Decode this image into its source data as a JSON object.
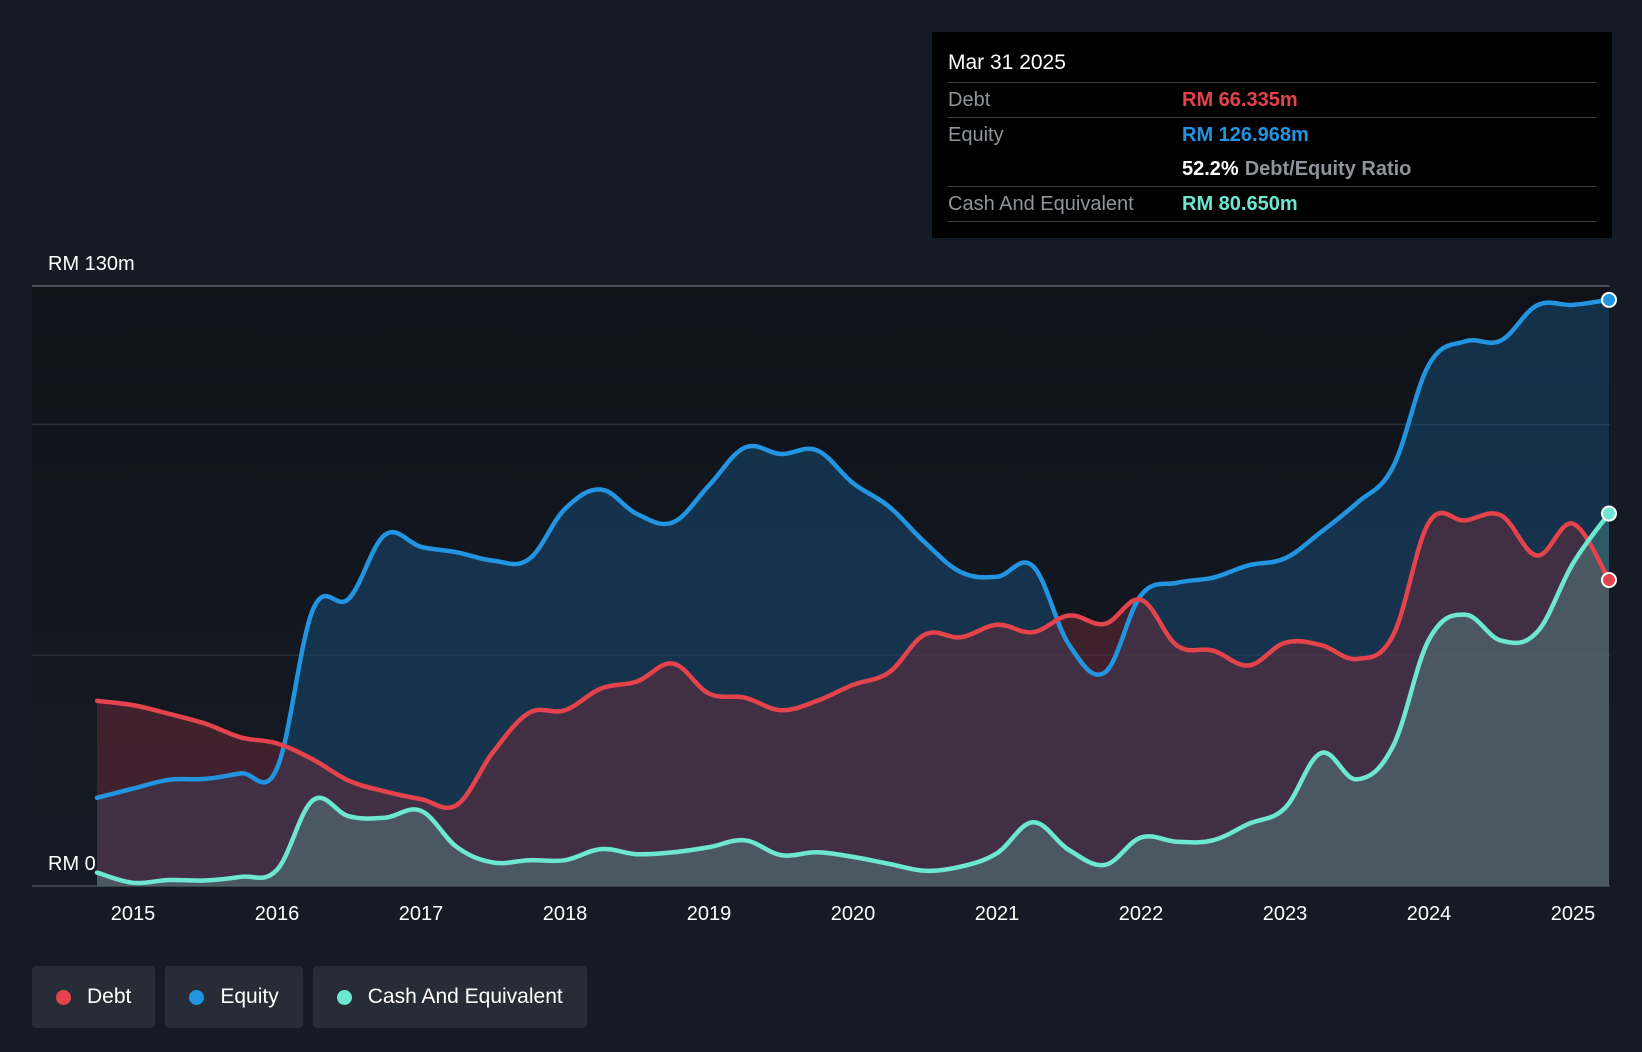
{
  "colors": {
    "debt": "#e5434b",
    "equity": "#2394e0",
    "cash": "#6ee7d0",
    "background": "#151b24"
  },
  "tooltip": {
    "date": "Mar 31 2025",
    "debt_label": "Debt",
    "debt_value": "RM 66.335m",
    "equity_label": "Equity",
    "equity_value": "RM 126.968m",
    "ratio_value": "52.2%",
    "ratio_label": "Debt/Equity Ratio",
    "cash_label": "Cash And Equivalent",
    "cash_value": "RM 80.650m"
  },
  "legend": [
    {
      "name": "Debt",
      "color": "#e5434b"
    },
    {
      "name": "Equity",
      "color": "#2394e0"
    },
    {
      "name": "Cash And Equivalent",
      "color": "#6ee7d0"
    }
  ],
  "chart_data": {
    "type": "area",
    "ylim": [
      0,
      130
    ],
    "y_ticks": [
      {
        "value": 130,
        "label": "RM 130m"
      },
      {
        "value": 0,
        "label": "RM 0"
      }
    ],
    "gridlines": [
      130,
      100,
      50,
      0
    ],
    "x_ticks": [
      2015,
      2016,
      2017,
      2018,
      2019,
      2020,
      2021,
      2022,
      2023,
      2024,
      2025
    ],
    "xlim": [
      2014.3,
      2025.25
    ],
    "series": [
      {
        "name": "Debt",
        "key": "debt",
        "points": [
          [
            2014.75,
            40.1
          ],
          [
            2015.0,
            39.2
          ],
          [
            2015.25,
            37.3
          ],
          [
            2015.5,
            35.2
          ],
          [
            2015.75,
            32.2
          ],
          [
            2016.0,
            30.9
          ],
          [
            2016.25,
            27.4
          ],
          [
            2016.5,
            22.8
          ],
          [
            2016.75,
            20.5
          ],
          [
            2017.0,
            18.8
          ],
          [
            2017.25,
            17.6
          ],
          [
            2017.5,
            29.0
          ],
          [
            2017.75,
            37.5
          ],
          [
            2018.0,
            38.1
          ],
          [
            2018.25,
            42.8
          ],
          [
            2018.5,
            44.3
          ],
          [
            2018.75,
            48.2
          ],
          [
            2019.0,
            41.7
          ],
          [
            2019.25,
            40.8
          ],
          [
            2019.5,
            38.1
          ],
          [
            2019.75,
            40.1
          ],
          [
            2020.0,
            43.6
          ],
          [
            2020.25,
            46.3
          ],
          [
            2020.5,
            54.5
          ],
          [
            2020.75,
            53.9
          ],
          [
            2021.0,
            56.6
          ],
          [
            2021.25,
            55.0
          ],
          [
            2021.5,
            58.6
          ],
          [
            2021.75,
            56.8
          ],
          [
            2022.0,
            62.0
          ],
          [
            2022.25,
            52.1
          ],
          [
            2022.5,
            51.0
          ],
          [
            2022.75,
            47.8
          ],
          [
            2023.0,
            52.7
          ],
          [
            2023.25,
            52.2
          ],
          [
            2023.5,
            49.2
          ],
          [
            2023.75,
            54.3
          ],
          [
            2024.0,
            78.8
          ],
          [
            2024.25,
            79.2
          ],
          [
            2024.5,
            80.3
          ],
          [
            2024.75,
            71.6
          ],
          [
            2025.0,
            78.5
          ],
          [
            2025.25,
            66.3
          ]
        ]
      },
      {
        "name": "Equity",
        "key": "equity",
        "points": [
          [
            2014.75,
            19.1
          ],
          [
            2015.0,
            21.1
          ],
          [
            2015.25,
            23.0
          ],
          [
            2015.5,
            23.2
          ],
          [
            2015.75,
            24.4
          ],
          [
            2016.0,
            25.5
          ],
          [
            2016.25,
            59.9
          ],
          [
            2016.5,
            62.3
          ],
          [
            2016.75,
            76.1
          ],
          [
            2017.0,
            73.5
          ],
          [
            2017.25,
            72.3
          ],
          [
            2017.5,
            70.5
          ],
          [
            2017.75,
            70.8
          ],
          [
            2018.0,
            81.7
          ],
          [
            2018.25,
            85.9
          ],
          [
            2018.5,
            80.6
          ],
          [
            2018.75,
            78.8
          ],
          [
            2019.0,
            86.8
          ],
          [
            2019.25,
            95.0
          ],
          [
            2019.5,
            93.6
          ],
          [
            2019.75,
            94.4
          ],
          [
            2020.0,
            87.3
          ],
          [
            2020.25,
            82.2
          ],
          [
            2020.5,
            74.4
          ],
          [
            2020.75,
            68.0
          ],
          [
            2021.0,
            67.0
          ],
          [
            2021.25,
            69.3
          ],
          [
            2021.5,
            52.3
          ],
          [
            2021.75,
            46.3
          ],
          [
            2022.0,
            63.0
          ],
          [
            2022.25,
            65.7
          ],
          [
            2022.5,
            66.8
          ],
          [
            2022.75,
            69.5
          ],
          [
            2023.0,
            71.0
          ],
          [
            2023.25,
            76.7
          ],
          [
            2023.5,
            83.0
          ],
          [
            2023.75,
            90.8
          ],
          [
            2024.0,
            113.0
          ],
          [
            2024.25,
            118.0
          ],
          [
            2024.5,
            118.2
          ],
          [
            2024.75,
            125.8
          ],
          [
            2025.0,
            125.9
          ],
          [
            2025.25,
            127.0
          ]
        ]
      },
      {
        "name": "Cash And Equivalent",
        "key": "cash",
        "points": [
          [
            2014.75,
            2.9
          ],
          [
            2015.0,
            0.7
          ],
          [
            2015.25,
            1.3
          ],
          [
            2015.5,
            1.2
          ],
          [
            2015.75,
            2.0
          ],
          [
            2016.0,
            3.5
          ],
          [
            2016.25,
            18.6
          ],
          [
            2016.5,
            15.1
          ],
          [
            2016.75,
            14.8
          ],
          [
            2017.0,
            16.3
          ],
          [
            2017.25,
            8.4
          ],
          [
            2017.5,
            5.1
          ],
          [
            2017.75,
            5.6
          ],
          [
            2018.0,
            5.6
          ],
          [
            2018.25,
            8.0
          ],
          [
            2018.5,
            6.9
          ],
          [
            2018.75,
            7.3
          ],
          [
            2019.0,
            8.4
          ],
          [
            2019.25,
            9.9
          ],
          [
            2019.5,
            6.7
          ],
          [
            2019.75,
            7.3
          ],
          [
            2020.0,
            6.3
          ],
          [
            2020.25,
            4.8
          ],
          [
            2020.5,
            3.3
          ],
          [
            2020.75,
            4.2
          ],
          [
            2021.0,
            7.1
          ],
          [
            2021.25,
            13.8
          ],
          [
            2021.5,
            7.8
          ],
          [
            2021.75,
            4.6
          ],
          [
            2022.0,
            10.5
          ],
          [
            2022.25,
            9.6
          ],
          [
            2022.5,
            9.9
          ],
          [
            2022.75,
            13.5
          ],
          [
            2023.0,
            16.9
          ],
          [
            2023.25,
            28.8
          ],
          [
            2023.5,
            23.1
          ],
          [
            2023.75,
            30.3
          ],
          [
            2024.0,
            53.4
          ],
          [
            2024.25,
            58.8
          ],
          [
            2024.5,
            53.2
          ],
          [
            2024.75,
            55.0
          ],
          [
            2025.0,
            69.9
          ],
          [
            2025.25,
            80.7
          ]
        ]
      }
    ]
  }
}
